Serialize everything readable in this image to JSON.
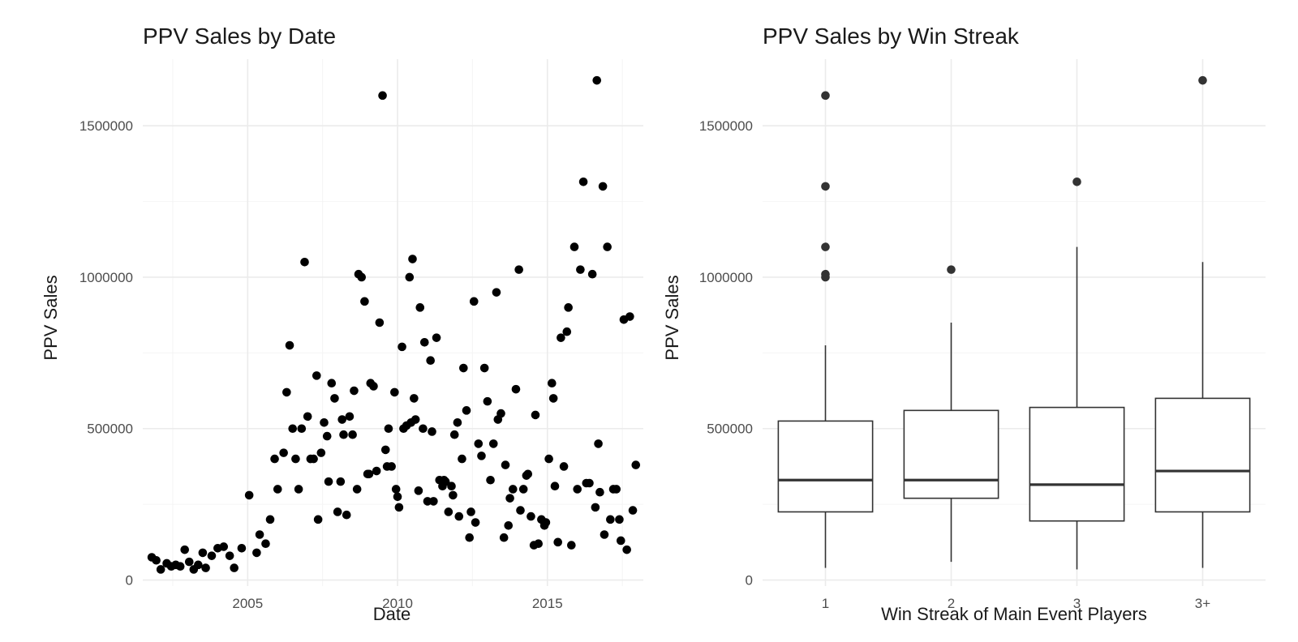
{
  "chart_data": [
    {
      "type": "scatter",
      "title": "PPV Sales by Date",
      "xlabel": "Date",
      "ylabel": "PPV Sales",
      "xlim": [
        2001.5,
        2018.2
      ],
      "ylim": [
        -20000,
        1720000
      ],
      "x_ticks": [
        2005,
        2010,
        2015
      ],
      "x_minor_ticks": [
        2002.5,
        2007.5,
        2012.5,
        2017.5
      ],
      "y_ticks": [
        0,
        500000,
        1000000,
        1500000
      ],
      "y_minor_ticks": [
        250000,
        750000,
        1250000
      ],
      "grid": true,
      "color": "#000000",
      "x": [
        2001.8,
        2001.95,
        2002.1,
        2002.3,
        2002.45,
        2002.6,
        2002.75,
        2002.9,
        2003.05,
        2003.2,
        2003.35,
        2003.5,
        2003.6,
        2003.8,
        2004.0,
        2004.2,
        2004.4,
        2004.55,
        2004.8,
        2005.05,
        2005.3,
        2005.4,
        2005.6,
        2005.75,
        2005.9,
        2006.0,
        2006.2,
        2006.3,
        2006.4,
        2006.5,
        2006.6,
        2006.7,
        2006.8,
        2006.9,
        2007.0,
        2007.1,
        2007.2,
        2007.3,
        2007.35,
        2007.45,
        2007.55,
        2007.65,
        2007.7,
        2007.8,
        2007.9,
        2008.0,
        2008.1,
        2008.15,
        2008.2,
        2008.3,
        2008.4,
        2008.5,
        2008.55,
        2008.65,
        2008.7,
        2008.8,
        2008.9,
        2009.0,
        2009.05,
        2009.1,
        2009.2,
        2009.3,
        2009.4,
        2009.5,
        2009.6,
        2009.65,
        2009.7,
        2009.8,
        2009.9,
        2009.95,
        2010.0,
        2010.05,
        2010.15,
        2010.2,
        2010.3,
        2010.4,
        2010.45,
        2010.5,
        2010.55,
        2010.6,
        2010.7,
        2010.75,
        2010.85,
        2010.9,
        2011.0,
        2011.1,
        2011.15,
        2011.2,
        2011.3,
        2011.4,
        2011.5,
        2011.55,
        2011.6,
        2011.7,
        2011.8,
        2011.85,
        2011.9,
        2012.0,
        2012.05,
        2012.15,
        2012.2,
        2012.3,
        2012.4,
        2012.45,
        2012.55,
        2012.6,
        2012.7,
        2012.8,
        2012.9,
        2013.0,
        2013.1,
        2013.2,
        2013.3,
        2013.35,
        2013.45,
        2013.55,
        2013.6,
        2013.7,
        2013.75,
        2013.85,
        2013.95,
        2014.05,
        2014.1,
        2014.2,
        2014.3,
        2014.35,
        2014.45,
        2014.55,
        2014.6,
        2014.7,
        2014.8,
        2014.9,
        2014.95,
        2015.05,
        2015.15,
        2015.2,
        2015.25,
        2015.35,
        2015.45,
        2015.55,
        2015.65,
        2015.7,
        2015.8,
        2015.9,
        2016.0,
        2016.1,
        2016.2,
        2016.3,
        2016.4,
        2016.5,
        2016.6,
        2016.65,
        2016.7,
        2016.75,
        2016.85,
        2016.9,
        2017.0,
        2017.1,
        2017.2,
        2017.3,
        2017.4,
        2017.45,
        2017.55,
        2017.65,
        2017.75,
        2017.85,
        2017.95
      ],
      "y": [
        75000,
        65000,
        35000,
        55000,
        45000,
        50000,
        45000,
        100000,
        60000,
        35000,
        50000,
        90000,
        40000,
        80000,
        105000,
        110000,
        80000,
        40000,
        105000,
        280000,
        90000,
        150000,
        120000,
        200000,
        400000,
        300000,
        420000,
        620000,
        775000,
        500000,
        400000,
        300000,
        500000,
        1050000,
        540000,
        400000,
        400000,
        675000,
        200000,
        420000,
        520000,
        475000,
        325000,
        650000,
        600000,
        225000,
        325000,
        530000,
        480000,
        215000,
        540000,
        480000,
        625000,
        300000,
        1010000,
        1000000,
        920000,
        350000,
        350000,
        650000,
        640000,
        360000,
        850000,
        1600000,
        430000,
        375000,
        500000,
        375000,
        620000,
        300000,
        275000,
        240000,
        770000,
        500000,
        510000,
        1000000,
        520000,
        1060000,
        600000,
        530000,
        295000,
        900000,
        500000,
        785000,
        260000,
        725000,
        490000,
        260000,
        800000,
        330000,
        310000,
        330000,
        325000,
        225000,
        310000,
        280000,
        480000,
        520000,
        210000,
        400000,
        700000,
        560000,
        140000,
        225000,
        920000,
        190000,
        450000,
        410000,
        700000,
        590000,
        330000,
        450000,
        950000,
        530000,
        550000,
        140000,
        380000,
        180000,
        270000,
        300000,
        630000,
        1025000,
        230000,
        300000,
        345000,
        350000,
        210000,
        115000,
        545000,
        120000,
        200000,
        180000,
        190000,
        400000,
        650000,
        600000,
        310000,
        125000,
        800000,
        375000,
        820000,
        900000,
        115000,
        1100000,
        300000,
        1025000,
        1315000,
        320000,
        320000,
        1010000,
        240000,
        1650000,
        450000,
        290000,
        1300000,
        150000,
        1100000,
        200000,
        300000,
        300000,
        200000,
        130000,
        860000,
        100000,
        870000,
        230000,
        380000
      ]
    },
    {
      "type": "boxplot",
      "title": "PPV Sales by Win Streak",
      "xlabel": "Win Streak of Main Event Players",
      "ylabel": "PPV Sales",
      "ylim": [
        -20000,
        1720000
      ],
      "y_ticks": [
        0,
        500000,
        1000000,
        1500000
      ],
      "y_minor_ticks": [
        250000,
        750000,
        1250000
      ],
      "grid": true,
      "categories": [
        "1",
        "2",
        "3",
        "3+"
      ],
      "boxes": [
        {
          "low": 40000,
          "q1": 225000,
          "median": 330000,
          "q3": 525000,
          "high": 775000,
          "outliers": [
            1600000,
            1300000,
            1100000,
            1010000,
            1000000
          ]
        },
        {
          "low": 60000,
          "q1": 270000,
          "median": 330000,
          "q3": 560000,
          "high": 850000,
          "outliers": [
            1025000
          ]
        },
        {
          "low": 35000,
          "q1": 195000,
          "median": 315000,
          "q3": 570000,
          "high": 1100000,
          "outliers": [
            1315000
          ]
        },
        {
          "low": 40000,
          "q1": 225000,
          "median": 360000,
          "q3": 600000,
          "high": 1050000,
          "outliers": [
            1650000
          ]
        }
      ],
      "box_stroke": "#333333",
      "outlier_color": "#333333"
    }
  ]
}
